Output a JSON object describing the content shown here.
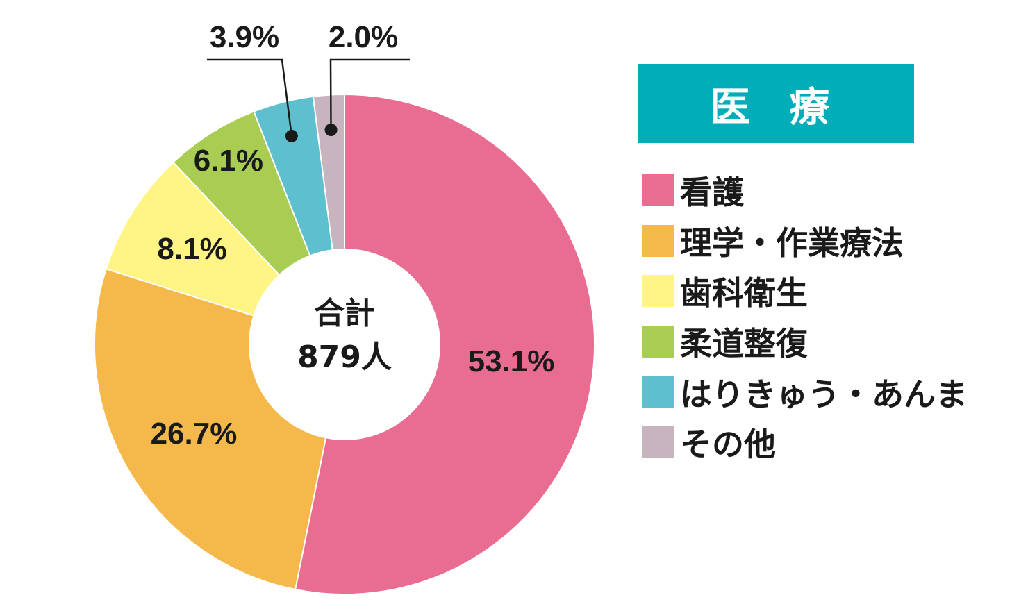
{
  "chart_data": {
    "type": "pie",
    "title": "医 療",
    "center_label": [
      "合計",
      "879人"
    ],
    "categories": [
      "看護",
      "理学・作業療法",
      "歯科衛生",
      "柔道整復",
      "はりきゅう・あんま",
      "その他"
    ],
    "values": [
      53.1,
      26.7,
      8.1,
      6.1,
      3.9,
      2.0
    ],
    "value_labels": [
      "53.1%",
      "26.7%",
      "8.1%",
      "6.1%",
      "3.9%",
      "2.0%"
    ],
    "colors": [
      "#e96d91",
      "#f5b84a",
      "#fff484",
      "#a9cd52",
      "#5ebfcf",
      "#c7b4be"
    ],
    "legend_position": "right",
    "title_background": "#00adb8"
  }
}
